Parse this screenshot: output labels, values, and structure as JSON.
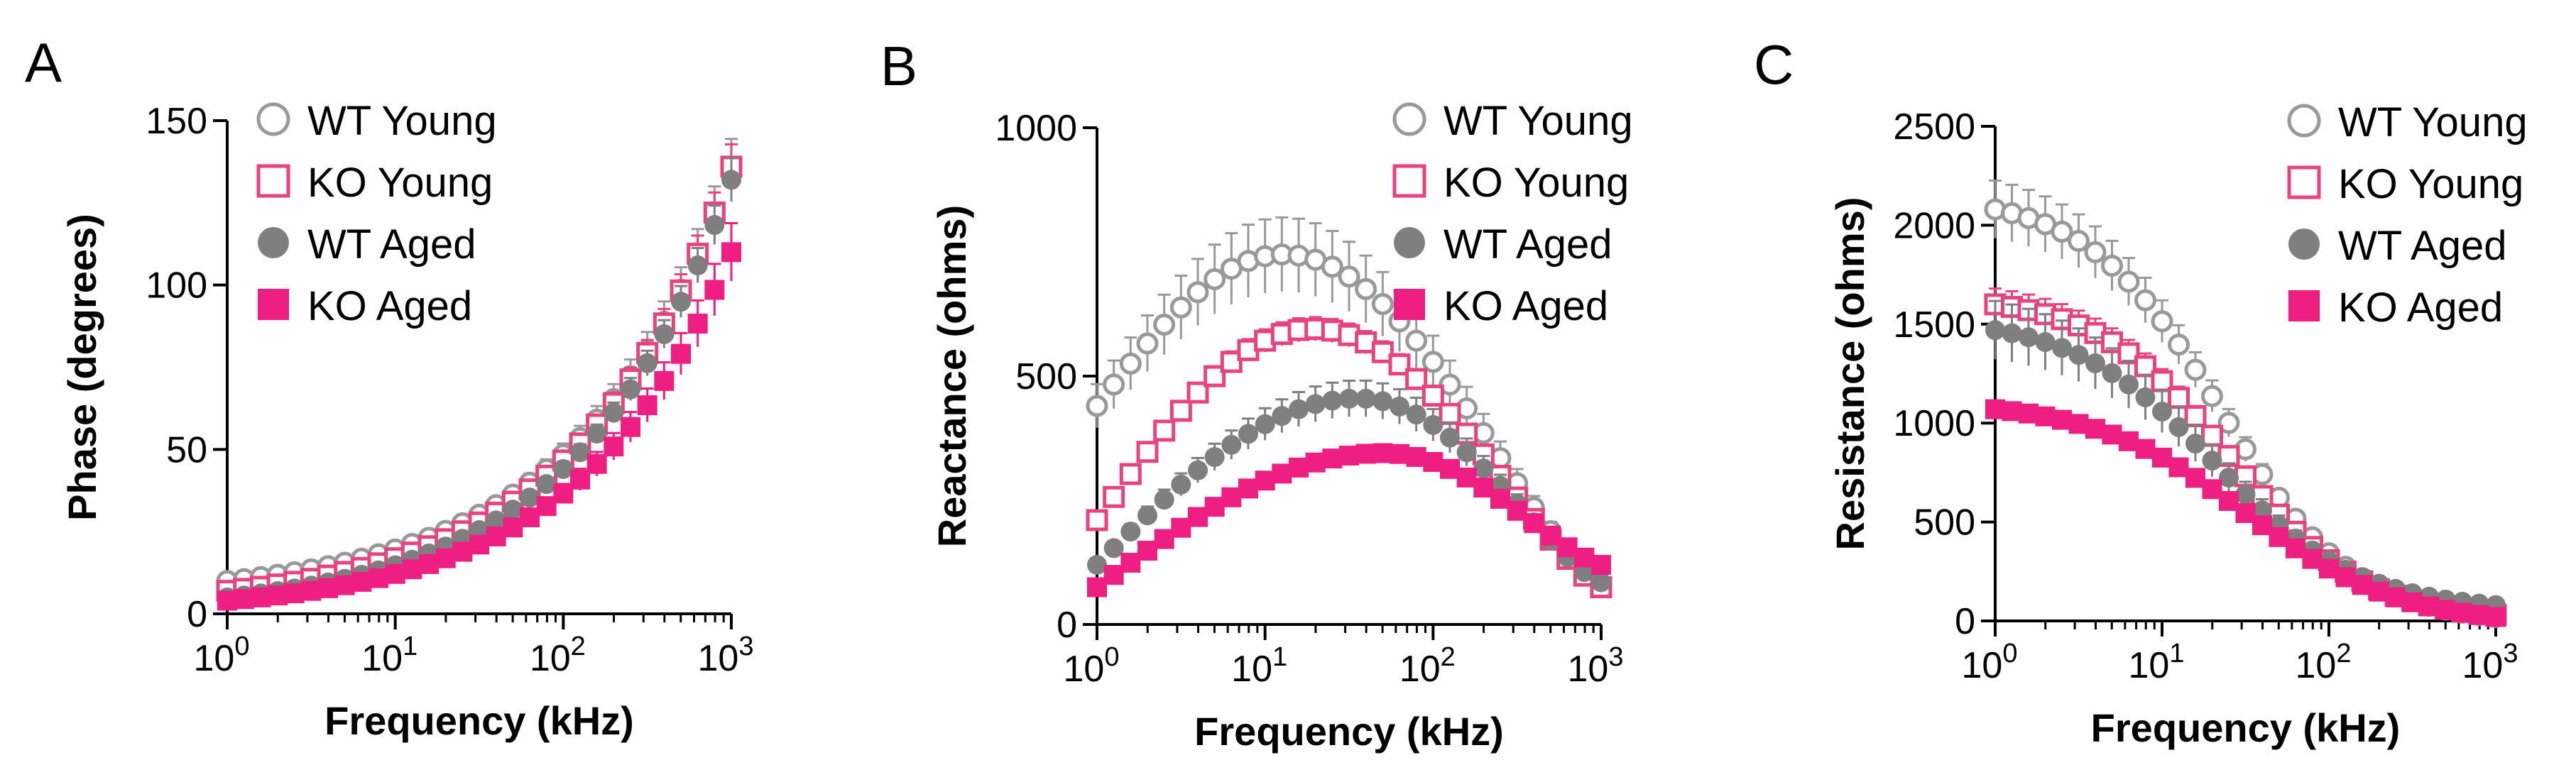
{
  "series_styles": [
    {
      "name": "WT Young",
      "color": "#999999",
      "marker": "open-circle"
    },
    {
      "name": "KO Young",
      "color": "#e8437e",
      "marker": "open-square"
    },
    {
      "name": "WT Aged",
      "color": "#7f7f7f",
      "marker": "filled-circle"
    },
    {
      "name": "KO Aged",
      "color": "#ef1e82",
      "marker": "filled-square"
    }
  ],
  "chart_data": [
    {
      "panel": "A",
      "type": "scatter",
      "xscale": "log",
      "xlabel": "Frequency (kHz)",
      "ylabel": "Phase (degrees)",
      "xlim": [
        1,
        1000
      ],
      "ylim": [
        0,
        150
      ],
      "yticks": [
        "0",
        "50",
        "100",
        "150"
      ],
      "xticks": [
        {
          "base": "10",
          "exp": "0"
        },
        {
          "base": "10",
          "exp": "1"
        },
        {
          "base": "10",
          "exp": "2"
        },
        {
          "base": "10",
          "exp": "3"
        }
      ],
      "legend": [
        "WT Young",
        "KO Young",
        "WT Aged",
        "KO Aged"
      ],
      "legend_position": "top-left",
      "series": [
        {
          "name": "WT Young",
          "y_start": 10,
          "y_end": 135,
          "shape": "exp",
          "err_frac": 0.07
        },
        {
          "name": "KO Young",
          "y_start": 7,
          "y_end": 136,
          "shape": "exp",
          "err_frac": 0.05
        },
        {
          "name": "WT Aged",
          "y_start": 5,
          "y_end": 132,
          "shape": "exp",
          "err_frac": 0.05
        },
        {
          "name": "KO Aged",
          "y_start": 4,
          "y_end": 110,
          "shape": "exp",
          "err_frac": 0.08
        }
      ]
    },
    {
      "panel": "B",
      "type": "scatter",
      "xscale": "log",
      "xlabel": "Frequency (kHz)",
      "ylabel": "Reactance (ohms)",
      "xlim": [
        1,
        1000
      ],
      "ylim": [
        0,
        1000
      ],
      "yticks": [
        "0",
        "500",
        "1000"
      ],
      "xticks": [
        {
          "base": "10",
          "exp": "0"
        },
        {
          "base": "10",
          "exp": "1"
        },
        {
          "base": "10",
          "exp": "2"
        },
        {
          "base": "10",
          "exp": "3"
        }
      ],
      "legend": [
        "WT Young",
        "KO Young",
        "WT Aged",
        "KO Aged"
      ],
      "legend_position": "top-right",
      "series": [
        {
          "name": "WT Young",
          "y_start": 440,
          "y_peak": 745,
          "peak_at": 0.37,
          "y_end": 80,
          "shape": "peak",
          "err_frac": 0.1
        },
        {
          "name": "KO Young",
          "y_start": 210,
          "y_peak": 595,
          "peak_at": 0.43,
          "y_end": 75,
          "shape": "peak",
          "err_frac": 0.04
        },
        {
          "name": "WT Aged",
          "y_start": 120,
          "y_peak": 455,
          "peak_at": 0.52,
          "y_end": 85,
          "shape": "peak",
          "err_frac": 0.08
        },
        {
          "name": "KO Aged",
          "y_start": 75,
          "y_peak": 345,
          "peak_at": 0.57,
          "y_end": 120,
          "shape": "peak",
          "err_frac": 0.02
        }
      ]
    },
    {
      "panel": "C",
      "type": "scatter",
      "xscale": "log",
      "xlabel": "Frequency (kHz)",
      "ylabel": "Resistance (ohms)",
      "xlim": [
        1,
        1000
      ],
      "ylim": [
        0,
        2500
      ],
      "yticks": [
        "0",
        "500",
        "1000",
        "1500",
        "2000",
        "2500"
      ],
      "xticks": [
        {
          "base": "10",
          "exp": "0"
        },
        {
          "base": "10",
          "exp": "1"
        },
        {
          "base": "10",
          "exp": "2"
        },
        {
          "base": "10",
          "exp": "3"
        }
      ],
      "legend": [
        "WT Young",
        "KO Young",
        "WT Aged",
        "KO Aged"
      ],
      "legend_position": "top-right",
      "series": [
        {
          "name": "WT Young",
          "y_start": 2080,
          "y_end": 20,
          "mid": 0.45,
          "steep": 7.5,
          "shape": "sigmoid",
          "err_frac": 0.07
        },
        {
          "name": "KO Young",
          "y_start": 1600,
          "y_end": 30,
          "mid": 0.47,
          "steep": 7.5,
          "shape": "sigmoid",
          "err_frac": 0.05
        },
        {
          "name": "WT Aged",
          "y_start": 1470,
          "y_end": 80,
          "mid": 0.44,
          "steep": 7,
          "shape": "sigmoid",
          "err_frac": 0.1
        },
        {
          "name": "KO Aged",
          "y_start": 1070,
          "y_end": 20,
          "mid": 0.5,
          "steep": 6.5,
          "shape": "sigmoid",
          "err_frac": 0.03
        }
      ]
    }
  ]
}
